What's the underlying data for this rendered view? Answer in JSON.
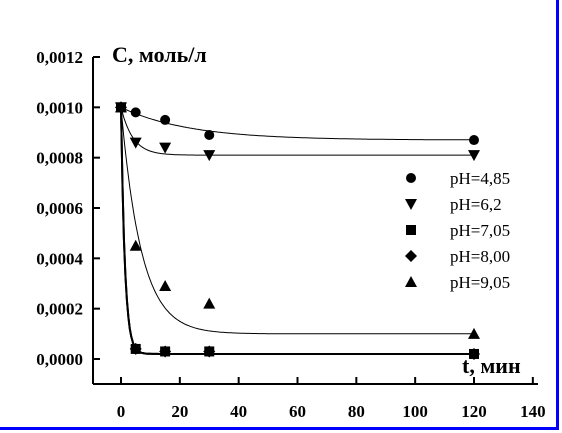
{
  "chart_data": {
    "type": "scatter",
    "ylabel": "C, моль/л",
    "xlabel": "t, мин",
    "xlim": [
      0,
      140
    ],
    "ylim": [
      0,
      0.0012
    ],
    "x_ticks": [
      0,
      20,
      40,
      60,
      80,
      100,
      120,
      140
    ],
    "y_ticks": [
      "0,0000",
      "0,0002",
      "0,0004",
      "0,0006",
      "0,0008",
      "0,0010",
      "0,0012"
    ],
    "legend_position": "right",
    "grid": false,
    "series": [
      {
        "name": "pH=4,85",
        "marker": "circle",
        "x": [
          0,
          5,
          15,
          30,
          120
        ],
        "y": [
          0.001,
          0.00098,
          0.00095,
          0.00089,
          0.00087
        ]
      },
      {
        "name": "pH=6,2",
        "marker": "triangle-down",
        "x": [
          0,
          5,
          15,
          30,
          120
        ],
        "y": [
          0.001,
          0.00086,
          0.00084,
          0.00081,
          0.00081
        ]
      },
      {
        "name": "pH=7,05",
        "marker": "square",
        "x": [
          0,
          5,
          15,
          30,
          120
        ],
        "y": [
          0.001,
          4e-05,
          3e-05,
          3e-05,
          2e-05
        ]
      },
      {
        "name": "pH=8,00",
        "marker": "diamond",
        "x": [
          0,
          5,
          15,
          30,
          120
        ],
        "y": [
          0.001,
          4e-05,
          3e-05,
          3e-05,
          2e-05
        ]
      },
      {
        "name": "pH=9,05",
        "marker": "triangle-up",
        "x": [
          0,
          5,
          15,
          30,
          120
        ],
        "y": [
          0.001,
          0.00045,
          0.00029,
          0.00022,
          0.0001
        ]
      }
    ]
  }
}
